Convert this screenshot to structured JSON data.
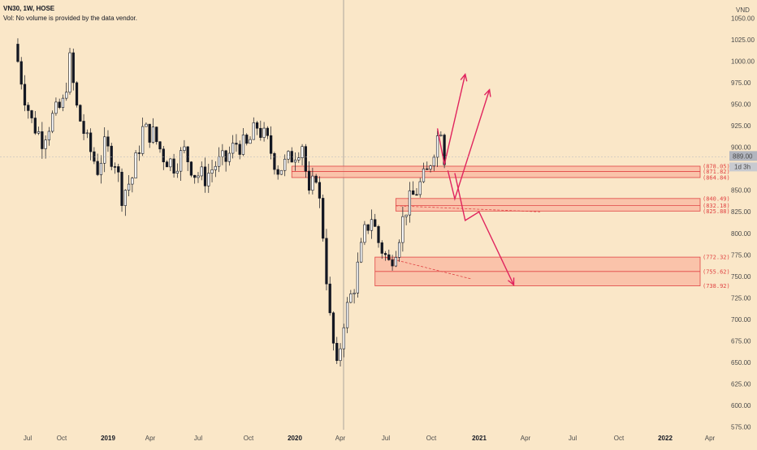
{
  "header": {
    "title": "VN30, 1W, HOSE",
    "volume_note": "Vol: No volume is provided by the data vendor."
  },
  "price_axis": {
    "currency": "VND",
    "ticks": [
      "1050.00",
      "1025.00",
      "1000.00",
      "975.00",
      "950.00",
      "925.00",
      "900.00",
      "875.00",
      "850.00",
      "825.00",
      "800.00",
      "775.00",
      "750.00",
      "725.00",
      "700.00",
      "675.00",
      "650.00",
      "625.00",
      "600.00",
      "575.00"
    ],
    "last_price_label": "889.00",
    "countdown_label": "1d 3h"
  },
  "time_axis": {
    "labels": [
      {
        "text": "Jul",
        "bold": false
      },
      {
        "text": "Oct",
        "bold": false
      },
      {
        "text": "2019",
        "bold": true
      },
      {
        "text": "Apr",
        "bold": false
      },
      {
        "text": "Jul",
        "bold": false
      },
      {
        "text": "Oct",
        "bold": false
      },
      {
        "text": "2020",
        "bold": true
      },
      {
        "text": "Apr",
        "bold": false
      },
      {
        "text": "Jul",
        "bold": false
      },
      {
        "text": "Oct",
        "bold": false
      },
      {
        "text": "2021",
        "bold": true
      },
      {
        "text": "Apr",
        "bold": false
      },
      {
        "text": "Jul",
        "bold": false
      },
      {
        "text": "Oct",
        "bold": false
      },
      {
        "text": "2022",
        "bold": true
      },
      {
        "text": "Apr",
        "bold": false
      }
    ]
  },
  "colors": {
    "background": "#fae7c8",
    "zone_fill": "#f9b7a0",
    "zone_line": "#e04444",
    "arrow": "#e0245e",
    "candle_up": "#ffffff",
    "candle_down": "#131722"
  },
  "chart_data": {
    "type": "candlestick",
    "symbol": "VN30",
    "interval": "1W",
    "exchange": "HOSE",
    "ylim": [
      565,
      1060
    ],
    "last_price": 889.0,
    "close_path": [
      [
        "2018-06-25",
        1000
      ],
      [
        "2018-07-09",
        960
      ],
      [
        "2018-07-23",
        930
      ],
      [
        "2018-08-13",
        910
      ],
      [
        "2018-09-03",
        935
      ],
      [
        "2018-09-24",
        950
      ],
      [
        "2018-10-08",
        1000
      ],
      [
        "2018-10-22",
        945
      ],
      [
        "2018-11-12",
        905
      ],
      [
        "2018-12-03",
        875
      ],
      [
        "2018-12-17",
        900
      ],
      [
        "2019-01-07",
        885
      ],
      [
        "2019-01-21",
        845
      ],
      [
        "2019-02-11",
        865
      ],
      [
        "2019-03-04",
        920
      ],
      [
        "2019-03-25",
        915
      ],
      [
        "2019-04-15",
        890
      ],
      [
        "2019-05-06",
        880
      ],
      [
        "2019-05-27",
        895
      ],
      [
        "2019-06-17",
        870
      ],
      [
        "2019-07-08",
        865
      ],
      [
        "2019-07-29",
        880
      ],
      [
        "2019-08-19",
        885
      ],
      [
        "2019-09-09",
        905
      ],
      [
        "2019-09-30",
        900
      ],
      [
        "2019-10-21",
        925
      ],
      [
        "2019-11-11",
        905
      ],
      [
        "2019-12-02",
        875
      ],
      [
        "2019-12-16",
        880
      ],
      [
        "2020-01-06",
        895
      ],
      [
        "2020-01-20",
        905
      ],
      [
        "2020-02-03",
        840
      ],
      [
        "2020-02-17",
        870
      ],
      [
        "2020-03-02",
        800
      ],
      [
        "2020-03-16",
        700
      ],
      [
        "2020-03-30",
        640
      ],
      [
        "2020-04-13",
        700
      ],
      [
        "2020-05-04",
        740
      ],
      [
        "2020-05-25",
        800
      ],
      [
        "2020-06-08",
        820
      ],
      [
        "2020-06-22",
        790
      ],
      [
        "2020-07-13",
        765
      ],
      [
        "2020-07-27",
        785
      ],
      [
        "2020-08-17",
        830
      ],
      [
        "2020-09-07",
        850
      ],
      [
        "2020-09-28",
        870
      ],
      [
        "2020-10-12",
        900
      ],
      [
        "2020-10-26",
        925
      ],
      [
        "2020-11-02",
        889
      ]
    ],
    "zones": [
      {
        "top": 878.05,
        "bottom": 864.84,
        "mid": 871.82,
        "labels": [
          "(878.05)",
          "(871.82)",
          "(864.84)"
        ]
      },
      {
        "top": 840.49,
        "bottom": 825.88,
        "mid": 832.18,
        "labels": [
          "(840.49)",
          "(832.18)",
          "(825.88)"
        ]
      },
      {
        "top": 772.32,
        "bottom": 738.92,
        "mid": 755.62,
        "labels": [
          "(772.32)",
          "(755.62)",
          "(738.92)"
        ]
      }
    ],
    "projections": [
      {
        "points": [
          [
            "2020-10-19",
            922
          ],
          [
            "2020-11-02",
            880
          ],
          [
            "2020-12-14",
            985
          ]
        ]
      },
      {
        "points": [
          [
            "2020-11-09",
            873
          ],
          [
            "2020-11-23",
            840
          ],
          [
            "2021-02-01",
            967
          ]
        ]
      },
      {
        "points": [
          [
            "2020-11-23",
            870
          ],
          [
            "2020-12-14",
            815
          ],
          [
            "2021-01-11",
            825
          ],
          [
            "2021-03-22",
            740
          ]
        ]
      }
    ]
  }
}
